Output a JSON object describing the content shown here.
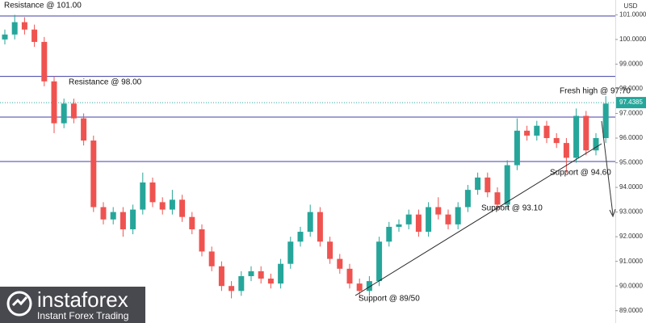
{
  "chart_data": {
    "type": "candlestick",
    "currency": "USD",
    "open": [
      100.0,
      100.2,
      100.7,
      100.4,
      99.9,
      98.3,
      96.6,
      97.4,
      96.8,
      95.9,
      93.2,
      92.7,
      93.0,
      92.3,
      93.1,
      94.2,
      93.4,
      93.1,
      93.5,
      92.8,
      92.3,
      91.4,
      90.8,
      90.0,
      89.8,
      90.4,
      90.6,
      90.3,
      90.1,
      90.9,
      91.8,
      92.2,
      93.0,
      91.8,
      91.1,
      90.7,
      90.1,
      89.8,
      90.2,
      91.8,
      92.4,
      92.5,
      92.9,
      92.2,
      93.2,
      92.9,
      92.5,
      93.2,
      93.9,
      94.4,
      93.8,
      93.3,
      94.9,
      96.3,
      96.1,
      96.5,
      96.0,
      95.8,
      95.2,
      96.9,
      95.5,
      96.0
    ],
    "high": [
      100.4,
      101.0,
      100.9,
      100.6,
      100.1,
      98.5,
      97.6,
      97.6,
      97.0,
      96.1,
      93.4,
      93.2,
      93.2,
      93.3,
      94.6,
      94.4,
      93.6,
      93.9,
      93.7,
      93.0,
      92.5,
      91.6,
      91.0,
      90.2,
      90.6,
      90.8,
      90.8,
      90.5,
      91.1,
      92.0,
      92.4,
      93.3,
      93.2,
      92.0,
      91.3,
      90.9,
      90.3,
      90.4,
      92.0,
      92.6,
      92.7,
      93.1,
      93.1,
      93.4,
      93.6,
      93.1,
      93.4,
      94.1,
      94.6,
      94.6,
      94.0,
      95.1,
      96.8,
      96.5,
      96.7,
      96.7,
      96.2,
      96.0,
      97.2,
      97.1,
      96.2,
      97.7
    ],
    "low": [
      99.8,
      100.0,
      100.2,
      99.7,
      98.1,
      96.2,
      96.4,
      96.6,
      95.7,
      93.0,
      92.5,
      92.5,
      92.0,
      92.1,
      92.9,
      93.2,
      92.9,
      92.9,
      92.6,
      92.1,
      91.2,
      90.6,
      89.8,
      89.5,
      89.6,
      90.2,
      90.1,
      89.9,
      89.9,
      90.7,
      91.6,
      92.0,
      91.6,
      90.9,
      90.5,
      89.9,
      89.5,
      89.6,
      90.0,
      91.6,
      92.2,
      92.3,
      92.0,
      92.0,
      92.7,
      92.3,
      92.3,
      93.0,
      93.7,
      93.6,
      93.1,
      93.1,
      94.7,
      95.9,
      95.9,
      95.8,
      95.6,
      94.6,
      95.0,
      95.3,
      95.3,
      95.8
    ],
    "close": [
      100.2,
      100.7,
      100.4,
      99.9,
      98.3,
      96.6,
      97.4,
      96.8,
      95.9,
      93.2,
      92.7,
      93.0,
      92.3,
      93.1,
      94.2,
      93.4,
      93.1,
      93.5,
      92.8,
      92.3,
      91.4,
      90.8,
      90.0,
      89.8,
      90.4,
      90.6,
      90.3,
      90.1,
      90.9,
      91.8,
      92.2,
      93.0,
      91.8,
      91.1,
      90.7,
      90.1,
      89.8,
      90.2,
      91.8,
      92.4,
      92.5,
      92.9,
      92.2,
      93.2,
      92.9,
      92.5,
      93.2,
      93.9,
      94.4,
      93.8,
      93.3,
      94.9,
      96.3,
      96.1,
      96.5,
      96.0,
      95.8,
      95.2,
      96.9,
      95.5,
      96.0,
      97.4
    ],
    "up_color": "#26a69a",
    "down_color": "#ef5350",
    "ylim": [
      88.5,
      101.6
    ],
    "yticks": [
      {
        "value": 101,
        "label": "101.0000"
      },
      {
        "value": 100,
        "label": "100.0000"
      },
      {
        "value": 99,
        "label": "99.0000"
      },
      {
        "value": 98,
        "label": "98.0000"
      },
      {
        "value": 97,
        "label": "97.0000"
      },
      {
        "value": 96,
        "label": "96.0000"
      },
      {
        "value": 95,
        "label": "95.0000"
      },
      {
        "value": 94,
        "label": "94.0000"
      },
      {
        "value": 93,
        "label": "93.0000"
      },
      {
        "value": 92,
        "label": "92.0000"
      },
      {
        "value": 91,
        "label": "91.0000"
      },
      {
        "value": 90,
        "label": "90.0000"
      },
      {
        "value": 89,
        "label": "89.0000"
      }
    ],
    "levels": [
      100.95,
      98.5,
      96.85,
      95.05
    ],
    "level_color": "#3f3fa8",
    "last_price": {
      "value": 97.4385,
      "label": "97.4385"
    },
    "last_price_color": "#26a69a",
    "annotations": [
      "Resistance @ 101.00",
      "Resistance @ 98.00",
      "Fresh high @ 97.70",
      "Support @ 94.60",
      "Support @ 93.10",
      "Support @ 89/50"
    ]
  },
  "watermark": {
    "brand": "instaforex",
    "tagline": "Instant Forex Trading"
  }
}
